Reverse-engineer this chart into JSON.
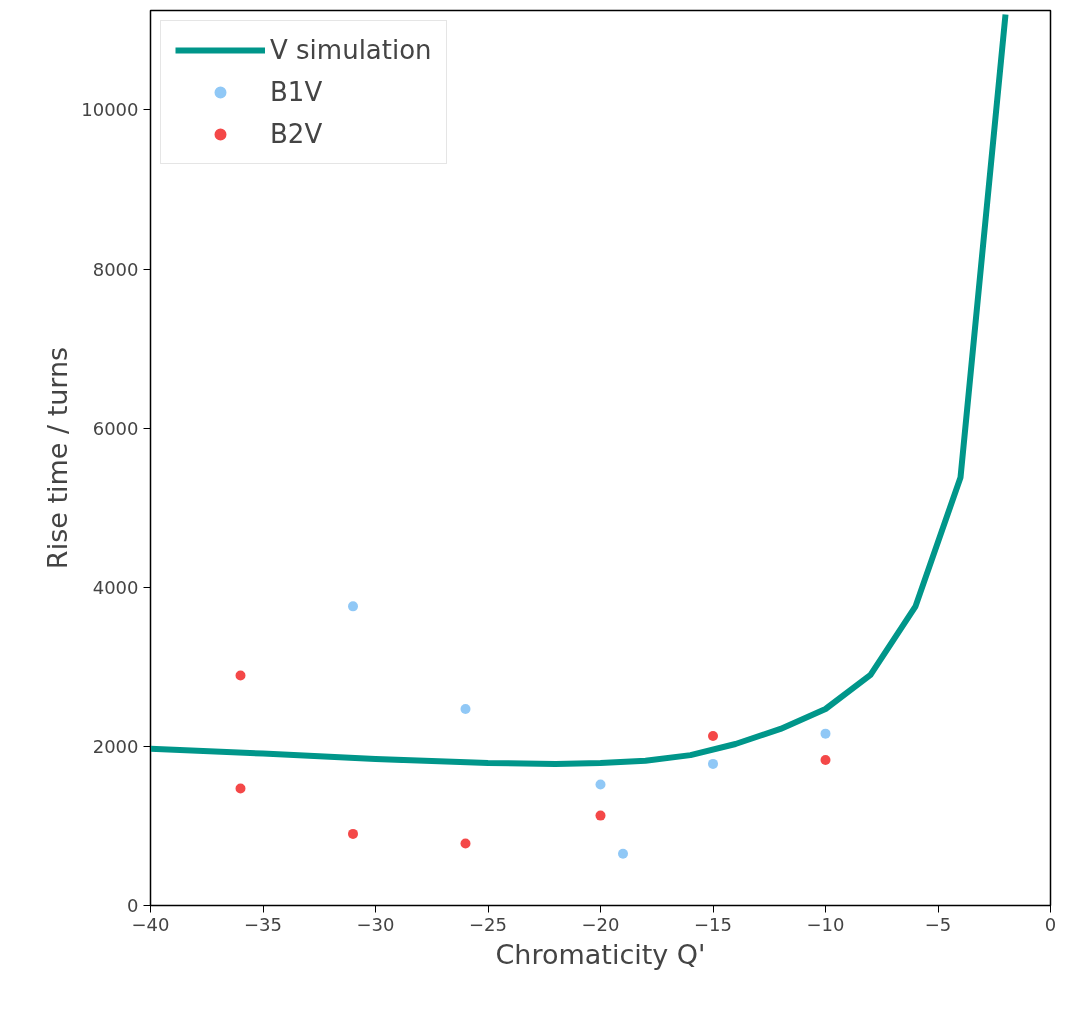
{
  "chart_data": {
    "type": "scatter",
    "xlabel": "Chromaticity Q'",
    "ylabel": "Rise time / turns",
    "xlim": [
      -40,
      0
    ],
    "ylim": [
      0,
      11250
    ],
    "xticks": [
      {
        "value": -40,
        "label": "−40"
      },
      {
        "value": -35,
        "label": "−35"
      },
      {
        "value": -30,
        "label": "−30"
      },
      {
        "value": -25,
        "label": "−25"
      },
      {
        "value": -20,
        "label": "−20"
      },
      {
        "value": -15,
        "label": "−15"
      },
      {
        "value": -10,
        "label": "−10"
      },
      {
        "value": -5,
        "label": "−5"
      },
      0
    ],
    "yticks": [
      0,
      2000,
      4000,
      6000,
      8000,
      10000
    ],
    "grid": false,
    "legend": "top left",
    "series": [
      {
        "name": "V simulation",
        "type": "line",
        "color": "#00968a",
        "x": [
          -40,
          -35,
          -30,
          -25,
          -22,
          -20,
          -18,
          -16,
          -14,
          -12,
          -10,
          -8,
          -6,
          -4,
          -2
        ],
        "values": [
          1970,
          1910,
          1840,
          1790,
          1780,
          1790,
          1820,
          1890,
          2030,
          2220,
          2470,
          2900,
          3760,
          5380,
          11200
        ],
        "marker": "none"
      },
      {
        "name": "B1V",
        "color": "#90c8f6",
        "x": [
          -31,
          -26,
          -20,
          -19,
          -15,
          -10
        ],
        "values": [
          3760,
          2470,
          1520,
          650,
          1780,
          2160
        ],
        "marker": "circle"
      },
      {
        "name": "B2V",
        "color": "#f44848",
        "x": [
          -36,
          -36,
          -31,
          -26,
          -20,
          -15,
          -10
        ],
        "values": [
          2890,
          1470,
          900,
          780,
          1130,
          2130,
          1830
        ],
        "marker": "circle"
      }
    ]
  }
}
